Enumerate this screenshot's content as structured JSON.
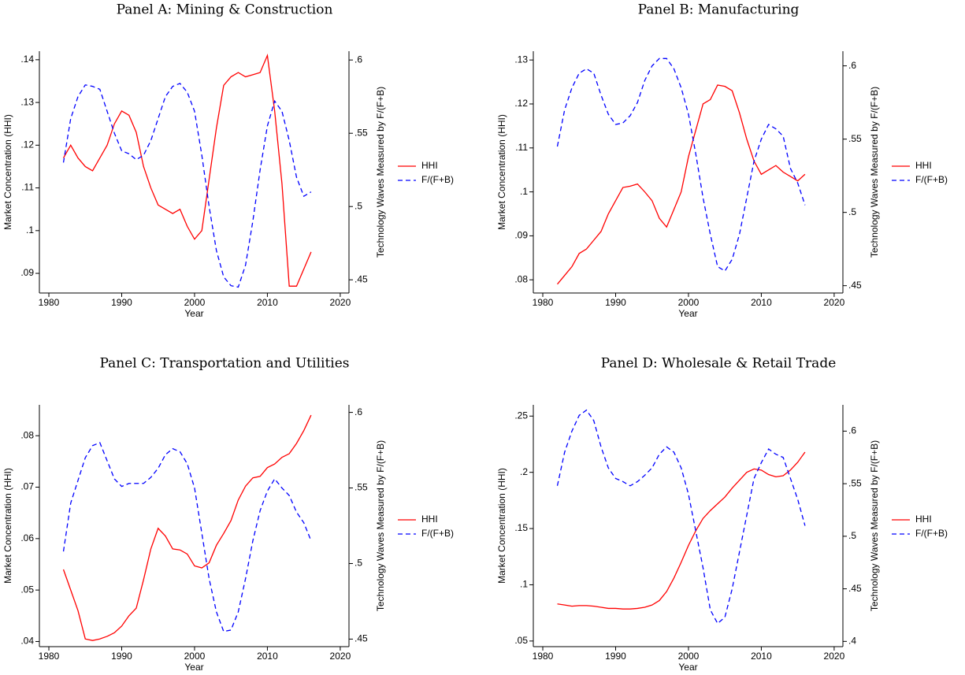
{
  "chart_data": [
    {
      "type": "line",
      "title": "Panel A: Mining & Construction",
      "xlabel": "Year",
      "ylabel": "Market Concentration (HHI)",
      "y2label": "Technology Waves Measured by F/(F+B)",
      "x": [
        1982,
        1983,
        1984,
        1985,
        1986,
        1987,
        1988,
        1989,
        1990,
        1991,
        1992,
        1993,
        1994,
        1995,
        1996,
        1997,
        1998,
        1999,
        2000,
        2001,
        2002,
        2003,
        2004,
        2005,
        2006,
        2007,
        2008,
        2009,
        2010,
        2011,
        2012,
        2013,
        2014,
        2015,
        2016
      ],
      "series": [
        {
          "name": "HHI",
          "color": "#ff0000",
          "dash": false,
          "values": [
            0.117,
            0.12,
            0.117,
            0.115,
            0.114,
            0.117,
            0.12,
            0.125,
            0.128,
            0.127,
            0.123,
            0.115,
            0.11,
            0.106,
            0.105,
            0.104,
            0.105,
            0.101,
            0.098,
            0.1,
            0.112,
            0.124,
            0.134,
            0.136,
            0.137,
            0.136,
            0.1365,
            0.137,
            0.141,
            0.128,
            0.111,
            0.087,
            0.087,
            0.091,
            0.095
          ]
        },
        {
          "name": "F/(F+B)",
          "color": "#0000ff",
          "dash": true,
          "axis": "y2",
          "values": [
            0.53,
            0.56,
            0.575,
            0.583,
            0.582,
            0.58,
            0.565,
            0.55,
            0.538,
            0.536,
            0.532,
            0.535,
            0.545,
            0.56,
            0.575,
            0.582,
            0.584,
            0.578,
            0.565,
            0.535,
            0.5,
            0.47,
            0.452,
            0.446,
            0.445,
            0.46,
            0.49,
            0.525,
            0.555,
            0.572,
            0.565,
            0.545,
            0.52,
            0.507,
            0.51
          ]
        }
      ],
      "xlim": [
        1978.7,
        2021.2
      ],
      "xticks": [
        1980,
        1990,
        2000,
        2010,
        2020
      ],
      "ylim": [
        0.0854,
        0.142
      ],
      "yticks": [
        {
          "value": 0.09,
          "label": ".09"
        },
        {
          "value": 0.1,
          "label": ".1"
        },
        {
          "value": 0.11,
          "label": ".11"
        },
        {
          "value": 0.12,
          "label": ".12"
        },
        {
          "value": 0.13,
          "label": ".13"
        },
        {
          "value": 0.14,
          "label": ".14"
        }
      ],
      "y2lim": [
        0.441,
        0.606
      ],
      "y2ticks": [
        {
          "value": 0.45,
          "label": ".45"
        },
        {
          "value": 0.5,
          "label": ".5"
        },
        {
          "value": 0.55,
          "label": ".55"
        },
        {
          "value": 0.6,
          "label": ".6"
        }
      ]
    },
    {
      "type": "line",
      "title": "Panel B: Manufacturing",
      "xlabel": "Year",
      "ylabel": "Market Concentration (HHI)",
      "y2label": "Technology Waves Measured by F/(F+B)",
      "x": [
        1982,
        1983,
        1984,
        1985,
        1986,
        1987,
        1988,
        1989,
        1990,
        1991,
        1992,
        1993,
        1994,
        1995,
        1996,
        1997,
        1998,
        1999,
        2000,
        2001,
        2002,
        2003,
        2004,
        2005,
        2006,
        2007,
        2008,
        2009,
        2010,
        2011,
        2012,
        2013,
        2014,
        2015,
        2016
      ],
      "series": [
        {
          "name": "HHI",
          "color": "#ff0000",
          "dash": false,
          "values": [
            0.079,
            0.081,
            0.083,
            0.086,
            0.087,
            0.089,
            0.091,
            0.095,
            0.098,
            0.101,
            0.1013,
            0.1018,
            0.1,
            0.098,
            0.094,
            0.092,
            0.096,
            0.1,
            0.108,
            0.114,
            0.12,
            0.121,
            0.1243,
            0.124,
            0.123,
            0.118,
            0.112,
            0.107,
            0.104,
            0.105,
            0.106,
            0.1045,
            0.1035,
            0.1025,
            0.104
          ]
        },
        {
          "name": "F/(F+B)",
          "color": "#0000ff",
          "dash": true,
          "axis": "y2",
          "values": [
            0.545,
            0.57,
            0.585,
            0.595,
            0.598,
            0.595,
            0.58,
            0.567,
            0.56,
            0.561,
            0.566,
            0.575,
            0.59,
            0.6,
            0.605,
            0.605,
            0.598,
            0.585,
            0.567,
            0.54,
            0.51,
            0.485,
            0.463,
            0.46,
            0.468,
            0.485,
            0.51,
            0.535,
            0.55,
            0.56,
            0.557,
            0.552,
            0.53,
            0.52,
            0.505
          ]
        }
      ],
      "xlim": [
        1978.7,
        2021.2
      ],
      "xticks": [
        1980,
        1990,
        2000,
        2010,
        2020
      ],
      "ylim": [
        0.077,
        0.132
      ],
      "yticks": [
        {
          "value": 0.08,
          "label": ".08"
        },
        {
          "value": 0.09,
          "label": ".09"
        },
        {
          "value": 0.1,
          "label": ".1"
        },
        {
          "value": 0.11,
          "label": ".11"
        },
        {
          "value": 0.12,
          "label": ".12"
        },
        {
          "value": 0.13,
          "label": ".13"
        }
      ],
      "y2lim": [
        0.445,
        0.61
      ],
      "y2ticks": [
        {
          "value": 0.45,
          "label": ".45"
        },
        {
          "value": 0.5,
          "label": ".5"
        },
        {
          "value": 0.55,
          "label": ".55"
        },
        {
          "value": 0.6,
          "label": ".6"
        }
      ]
    },
    {
      "type": "line",
      "title": "Panel C: Transportation and Utilities",
      "xlabel": "Year",
      "ylabel": "Market Concentration (HHI)",
      "y2label": "Technology Waves Measured by F/(F+B)",
      "x": [
        1982,
        1983,
        1984,
        1985,
        1986,
        1987,
        1988,
        1989,
        1990,
        1991,
        1992,
        1993,
        1994,
        1995,
        1996,
        1997,
        1998,
        1999,
        2000,
        2001,
        2002,
        2003,
        2004,
        2005,
        2006,
        2007,
        2008,
        2009,
        2010,
        2011,
        2012,
        2013,
        2014,
        2015,
        2016
      ],
      "series": [
        {
          "name": "HHI",
          "color": "#ff0000",
          "dash": false,
          "values": [
            0.054,
            0.05,
            0.046,
            0.0405,
            0.0402,
            0.0405,
            0.041,
            0.0417,
            0.043,
            0.045,
            0.0465,
            0.052,
            0.058,
            0.062,
            0.0605,
            0.058,
            0.0578,
            0.057,
            0.0547,
            0.0543,
            0.0553,
            0.0587,
            0.061,
            0.0635,
            0.0675,
            0.0702,
            0.0718,
            0.0721,
            0.0738,
            0.0745,
            0.0758,
            0.0765,
            0.0785,
            0.081,
            0.084
          ]
        },
        {
          "name": "F/(F+B)",
          "color": "#0000ff",
          "dash": true,
          "axis": "y2",
          "values": [
            0.508,
            0.54,
            0.555,
            0.57,
            0.578,
            0.58,
            0.568,
            0.556,
            0.551,
            0.553,
            0.553,
            0.553,
            0.557,
            0.563,
            0.572,
            0.576,
            0.574,
            0.566,
            0.55,
            0.52,
            0.49,
            0.468,
            0.455,
            0.456,
            0.468,
            0.49,
            0.515,
            0.535,
            0.548,
            0.556,
            0.55,
            0.545,
            0.534,
            0.527,
            0.515
          ]
        }
      ],
      "xlim": [
        1978.7,
        2021.2
      ],
      "xticks": [
        1980,
        1990,
        2000,
        2010,
        2020
      ],
      "ylim": [
        0.039,
        0.086
      ],
      "yticks": [
        {
          "value": 0.04,
          "label": ".04"
        },
        {
          "value": 0.05,
          "label": ".05"
        },
        {
          "value": 0.06,
          "label": ".06"
        },
        {
          "value": 0.07,
          "label": ".07"
        },
        {
          "value": 0.08,
          "label": ".08"
        }
      ],
      "y2lim": [
        0.445,
        0.605
      ],
      "y2ticks": [
        {
          "value": 0.45,
          "label": ".45"
        },
        {
          "value": 0.5,
          "label": ".5"
        },
        {
          "value": 0.55,
          "label": ".55"
        },
        {
          "value": 0.6,
          "label": ".6"
        }
      ]
    },
    {
      "type": "line",
      "title": "Panel D: Wholesale & Retail Trade",
      "xlabel": "Year",
      "ylabel": "Market Concentration (HHI)",
      "y2label": "Technology Waves Measured by F/(F+B)",
      "x": [
        1982,
        1983,
        1984,
        1985,
        1986,
        1987,
        1988,
        1989,
        1990,
        1991,
        1992,
        1993,
        1994,
        1995,
        1996,
        1997,
        1998,
        1999,
        2000,
        2001,
        2002,
        2003,
        2004,
        2005,
        2006,
        2007,
        2008,
        2009,
        2010,
        2011,
        2012,
        2013,
        2014,
        2015,
        2016
      ],
      "series": [
        {
          "name": "HHI",
          "color": "#ff0000",
          "dash": false,
          "values": [
            0.083,
            0.082,
            0.081,
            0.0815,
            0.0815,
            0.081,
            0.08,
            0.079,
            0.079,
            0.0785,
            0.0785,
            0.079,
            0.08,
            0.082,
            0.086,
            0.094,
            0.106,
            0.12,
            0.135,
            0.148,
            0.159,
            0.166,
            0.172,
            0.178,
            0.186,
            0.193,
            0.2,
            0.203,
            0.202,
            0.198,
            0.196,
            0.197,
            0.202,
            0.209,
            0.218
          ]
        },
        {
          "name": "F/(F+B)",
          "color": "#0000ff",
          "dash": true,
          "axis": "y2",
          "values": [
            0.548,
            0.58,
            0.6,
            0.615,
            0.62,
            0.61,
            0.585,
            0.565,
            0.555,
            0.552,
            0.548,
            0.552,
            0.558,
            0.565,
            0.578,
            0.585,
            0.58,
            0.565,
            0.54,
            0.505,
            0.47,
            0.43,
            0.417,
            0.423,
            0.45,
            0.485,
            0.52,
            0.555,
            0.57,
            0.583,
            0.578,
            0.575,
            0.555,
            0.535,
            0.51
          ]
        }
      ],
      "xlim": [
        1978.7,
        2021.2
      ],
      "xticks": [
        1980,
        1990,
        2000,
        2010,
        2020
      ],
      "ylim": [
        0.045,
        0.26
      ],
      "yticks": [
        {
          "value": 0.05,
          "label": ".05"
        },
        {
          "value": 0.1,
          "label": ".1"
        },
        {
          "value": 0.15,
          "label": ".15"
        },
        {
          "value": 0.2,
          "label": ".2"
        },
        {
          "value": 0.25,
          "label": ".25"
        }
      ],
      "y2lim": [
        0.395,
        0.625
      ],
      "y2ticks": [
        {
          "value": 0.4,
          "label": ".4"
        },
        {
          "value": 0.45,
          "label": ".45"
        },
        {
          "value": 0.5,
          "label": ".5"
        },
        {
          "value": 0.55,
          "label": ".55"
        },
        {
          "value": 0.6,
          "label": ".6"
        }
      ]
    }
  ]
}
